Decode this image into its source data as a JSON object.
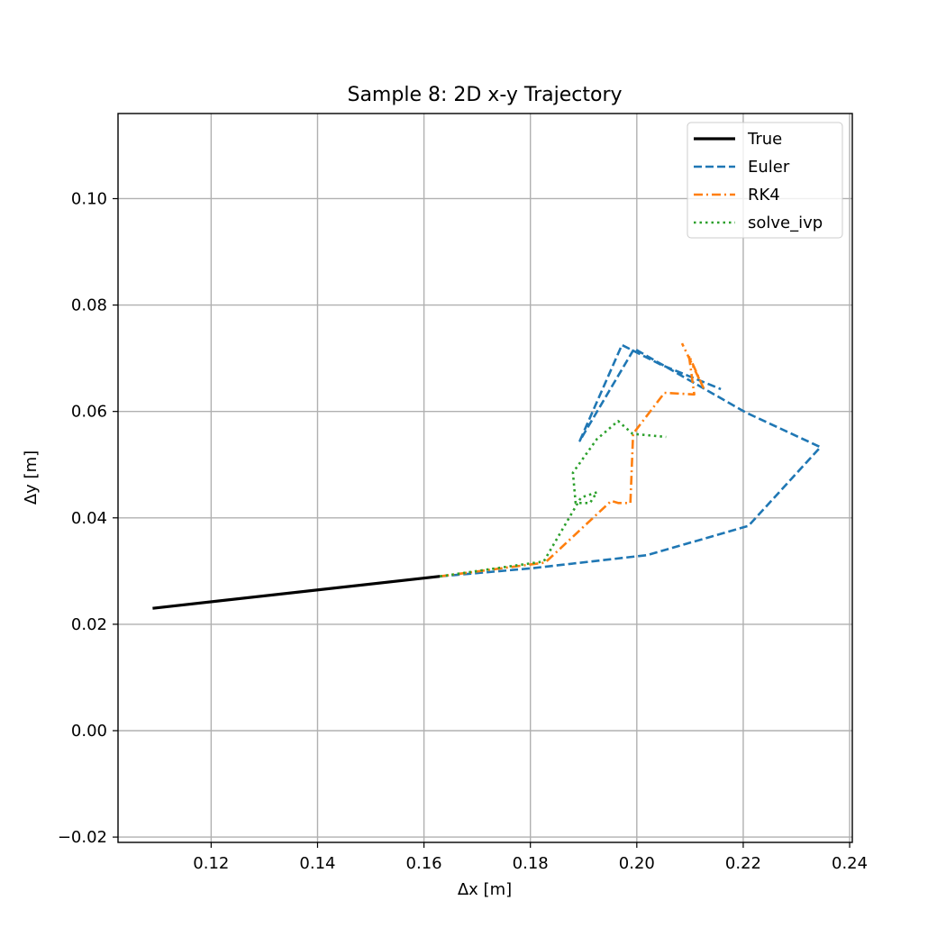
{
  "chart_data": {
    "type": "line",
    "title": "Sample 8: 2D x-y Trajectory",
    "xlabel": "Δx [m]",
    "ylabel": "Δy [m]",
    "xlim": [
      0.1025,
      0.2405
    ],
    "ylim": [
      -0.021,
      0.116
    ],
    "xticks": [
      0.12,
      0.14,
      0.16,
      0.18,
      0.2,
      0.22,
      0.24
    ],
    "xtick_labels": [
      "0.12",
      "0.14",
      "0.16",
      "0.18",
      "0.20",
      "0.22",
      "0.24"
    ],
    "yticks": [
      -0.02,
      0.0,
      0.02,
      0.04,
      0.06,
      0.08,
      0.1
    ],
    "ytick_labels": [
      "−0.02",
      "0.00",
      "0.02",
      "0.04",
      "0.06",
      "0.08",
      "0.10"
    ],
    "grid": true,
    "legend_position": "top-right",
    "series": [
      {
        "name": "True",
        "color": "#000000",
        "style": "solid",
        "points": [
          [
            0.109,
            0.023
          ],
          [
            0.163,
            0.029
          ]
        ]
      },
      {
        "name": "Euler",
        "color": "#1f77b4",
        "style": "dashed",
        "points": [
          [
            0.163,
            0.029
          ],
          [
            0.18,
            0.0305
          ],
          [
            0.202,
            0.033
          ],
          [
            0.221,
            0.0385
          ],
          [
            0.2345,
            0.0533
          ],
          [
            0.2205,
            0.0598
          ],
          [
            0.1995,
            0.0718
          ],
          [
            0.1893,
            0.0545
          ],
          [
            0.1972,
            0.0725
          ],
          [
            0.2045,
            0.0688
          ],
          [
            0.2158,
            0.0642
          ]
        ]
      },
      {
        "name": "RK4",
        "color": "#ff7f0e",
        "style": "dashdot",
        "points": [
          [
            0.163,
            0.029
          ],
          [
            0.1828,
            0.0316
          ],
          [
            0.1952,
            0.0432
          ],
          [
            0.1965,
            0.0428
          ],
          [
            0.1988,
            0.0428
          ],
          [
            0.1993,
            0.0558
          ],
          [
            0.2052,
            0.0635
          ],
          [
            0.2108,
            0.0632
          ],
          [
            0.2098,
            0.0705
          ],
          [
            0.2125,
            0.0645
          ],
          [
            0.2085,
            0.0728
          ]
        ]
      },
      {
        "name": "solve_ivp",
        "color": "#2ca02c",
        "style": "dotted",
        "points": [
          [
            0.163,
            0.029
          ],
          [
            0.1825,
            0.0318
          ],
          [
            0.1895,
            0.0438
          ],
          [
            0.1925,
            0.0448
          ],
          [
            0.1912,
            0.0428
          ],
          [
            0.1885,
            0.0428
          ],
          [
            0.188,
            0.0485
          ],
          [
            0.1925,
            0.0548
          ],
          [
            0.1965,
            0.0582
          ],
          [
            0.1992,
            0.0558
          ],
          [
            0.2055,
            0.0552
          ]
        ]
      }
    ]
  }
}
